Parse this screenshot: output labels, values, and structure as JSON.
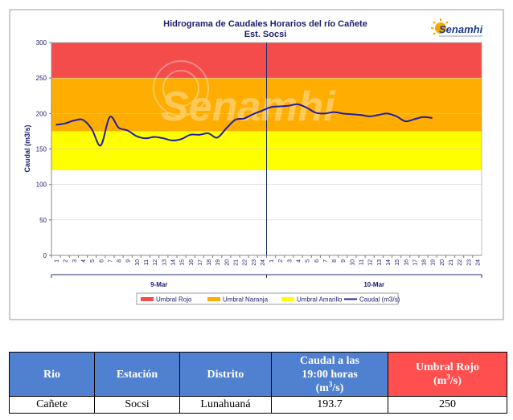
{
  "chart_data": {
    "type": "line",
    "title": "Hidrograma de Caudales Horarios del río Cañete",
    "subtitle": "Est. Socsi",
    "ylabel": "Caudal  (m3/s)",
    "ylim": [
      0,
      300
    ],
    "yticks": [
      0,
      50,
      100,
      150,
      200,
      250,
      300
    ],
    "xticks": [
      "1",
      "2",
      "3",
      "4",
      "5",
      "6",
      "7",
      "8",
      "9",
      "10",
      "11",
      "12",
      "13",
      "14",
      "15",
      "16",
      "17",
      "18",
      "19",
      "20",
      "21",
      "22",
      "23",
      "24",
      "1",
      "2",
      "3",
      "4",
      "5",
      "6",
      "7",
      "8",
      "9",
      "10",
      "11",
      "12",
      "13",
      "14",
      "15",
      "16",
      "17",
      "18",
      "19",
      "20",
      "21",
      "22",
      "23",
      "24"
    ],
    "day_groups": [
      "9-Mar",
      "10-Mar"
    ],
    "thresholds": [
      {
        "name": "Umbral Rojo",
        "from": 250,
        "to": 300,
        "color": "#f44b4b"
      },
      {
        "name": "Umbral Naranja",
        "from": 175,
        "to": 250,
        "color": "#ffad00"
      },
      {
        "name": "Umbral Amarillo",
        "from": 120,
        "to": 175,
        "color": "#ffff00"
      }
    ],
    "series": [
      {
        "name": "Caudal (m3/s)",
        "color": "#1f1fa3",
        "x": [
          1,
          2,
          3,
          4,
          5,
          6,
          7,
          8,
          9,
          10,
          11,
          12,
          13,
          14,
          15,
          16,
          17,
          18,
          19,
          20,
          21,
          22,
          23,
          24,
          25,
          26,
          27,
          28,
          29,
          30,
          31,
          32,
          33,
          34,
          35,
          36,
          37,
          38,
          39,
          40,
          41,
          42,
          43
        ],
        "values": [
          184,
          186,
          190,
          191,
          178,
          155,
          195,
          180,
          176,
          168,
          165,
          167,
          165,
          162,
          164,
          170,
          170,
          172,
          166,
          179,
          191,
          193,
          199,
          204,
          209,
          210,
          211,
          213,
          208,
          201,
          200,
          202,
          200,
          199,
          198,
          196,
          198,
          200,
          196,
          189,
          192,
          195,
          193.7
        ]
      }
    ],
    "logo_text": "Senamhi",
    "watermark_text": "Senamhi"
  },
  "table": {
    "headers": [
      {
        "text": "Rio"
      },
      {
        "text": "Estación"
      },
      {
        "text": "Distrito"
      },
      {
        "line1": "Caudal a las",
        "line2": "19:00 horas",
        "unit_pre": "(m",
        "unit_sup": "3",
        "unit_post": "/s)"
      },
      {
        "line1": "Umbral Rojo",
        "unit_pre": "(m",
        "unit_sup": "3",
        "unit_post": "/s)"
      }
    ],
    "row": [
      "Cañete",
      "Socsi",
      "Lunahuaná",
      "193.7",
      "250"
    ]
  }
}
